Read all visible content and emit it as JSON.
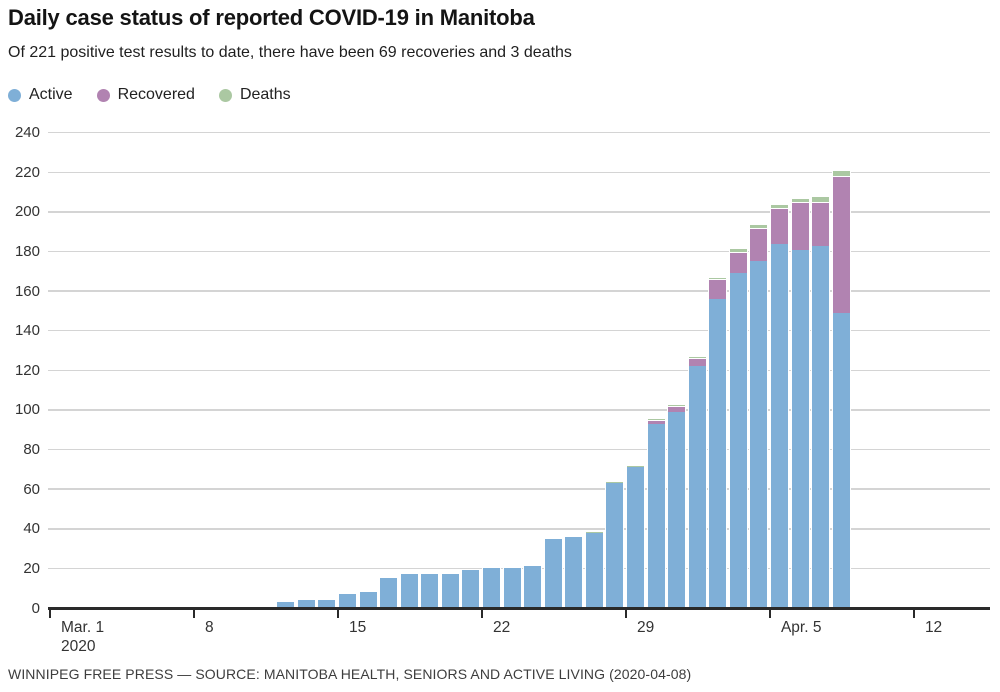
{
  "header": {
    "title": "Daily case status of reported COVID-19 in Manitoba",
    "subtitle": "Of 221 positive test results to date, there have been 69 recoveries and 3 deaths"
  },
  "legend": {
    "items": [
      {
        "label": "Active",
        "color": "#7fafd7"
      },
      {
        "label": "Recovered",
        "color": "#b183b1"
      },
      {
        "label": "Deaths",
        "color": "#abc8a2"
      }
    ]
  },
  "chart_data": {
    "type": "bar",
    "stacked": true,
    "title": "Daily case status of reported COVID-19 in Manitoba",
    "xlabel": "",
    "ylabel": "",
    "ylim": [
      0,
      240
    ],
    "y_ticks": [
      0,
      20,
      40,
      60,
      80,
      100,
      120,
      140,
      160,
      180,
      200,
      220,
      240
    ],
    "grid": "horizontal",
    "legend_position": "top-left",
    "x_axis_start_label": "Mar. 1",
    "x_axis_start_sublabel": "2020",
    "x_ticks": [
      {
        "day": 0,
        "label": "Mar. 1",
        "sublabel": "2020"
      },
      {
        "day": 7,
        "label": "8"
      },
      {
        "day": 14,
        "label": "15"
      },
      {
        "day": 21,
        "label": "22"
      },
      {
        "day": 28,
        "label": "29"
      },
      {
        "day": 35,
        "label": "Apr. 5"
      },
      {
        "day": 42,
        "label": "12"
      }
    ],
    "first_bar_day_offset": 11,
    "categories": [
      "Mar. 12",
      "Mar. 13",
      "Mar. 14",
      "Mar. 15",
      "Mar. 16",
      "Mar. 17",
      "Mar. 18",
      "Mar. 19",
      "Mar. 20",
      "Mar. 21",
      "Mar. 22",
      "Mar. 23",
      "Mar. 24",
      "Mar. 25",
      "Mar. 26",
      "Mar. 27",
      "Mar. 28",
      "Mar. 29",
      "Mar. 30",
      "Mar. 31",
      "Apr. 1",
      "Apr. 2",
      "Apr. 3",
      "Apr. 4",
      "Apr. 5",
      "Apr. 6",
      "Apr. 7",
      "Apr. 8"
    ],
    "series": [
      {
        "name": "Active",
        "color": "#7fafd7",
        "values": [
          3,
          4,
          4,
          7,
          8,
          15,
          17,
          17,
          17,
          19,
          20,
          20,
          21,
          35,
          36,
          38,
          63,
          71,
          93,
          99,
          122,
          156,
          169,
          175,
          184,
          181,
          183,
          149
        ]
      },
      {
        "name": "Recovered",
        "color": "#b183b1",
        "values": [
          0,
          0,
          0,
          0,
          0,
          0,
          0,
          0,
          0,
          0,
          0,
          0,
          0,
          0,
          0,
          0,
          0,
          0,
          2,
          3,
          4,
          10,
          11,
          17,
          18,
          24,
          22,
          69
        ]
      },
      {
        "name": "Deaths",
        "color": "#abc8a2",
        "values": [
          0,
          0,
          0,
          0,
          0,
          0,
          0,
          0,
          0,
          0,
          0,
          0,
          0,
          0,
          0,
          1,
          1,
          1,
          1,
          1,
          1,
          1,
          2,
          2,
          2,
          2,
          3,
          3
        ]
      }
    ],
    "totals": [
      3,
      4,
      4,
      7,
      8,
      15,
      17,
      17,
      17,
      19,
      20,
      20,
      21,
      35,
      36,
      39,
      64,
      72,
      96,
      103,
      127,
      167,
      182,
      194,
      204,
      207,
      208,
      221
    ]
  },
  "footer": {
    "credit": "WINNIPEG FREE PRESS — SOURCE: MANITOBA HEALTH, SENIORS AND ACTIVE LIVING (2020-04-08)"
  }
}
